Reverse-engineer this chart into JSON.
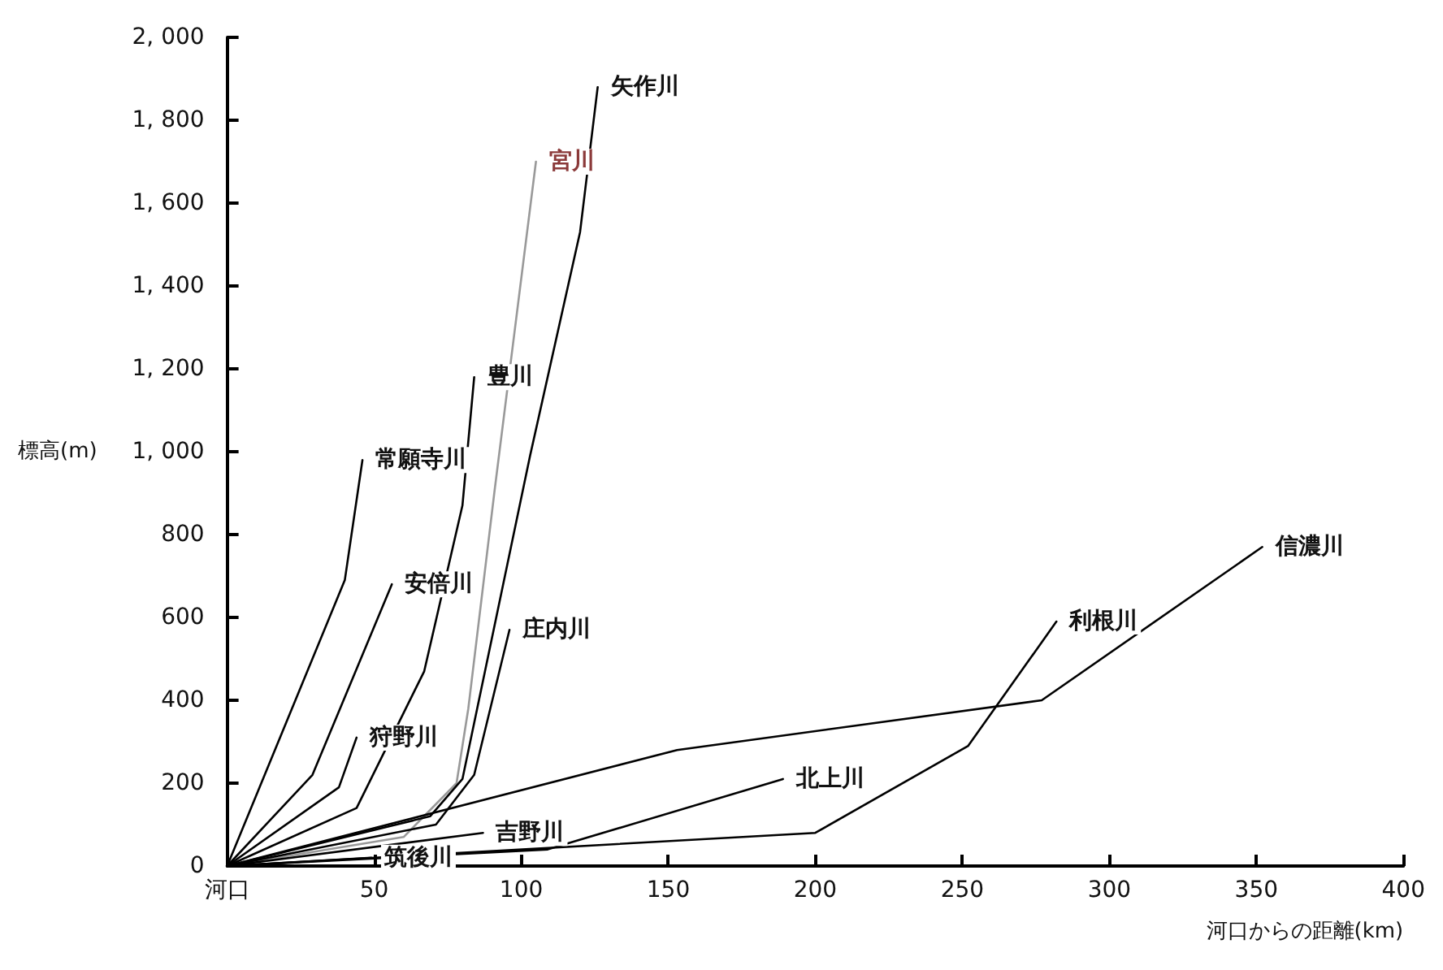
{
  "chart_data": {
    "type": "line",
    "xlabel": "河口からの距離(km)",
    "ylabel": "標高(m)",
    "xlim": [
      0,
      400
    ],
    "xticks": [
      {
        "value": 0,
        "label": "河口"
      },
      50,
      100,
      150,
      200,
      250,
      300,
      350,
      400
    ],
    "ylim": [
      0,
      2000
    ],
    "yticks": [
      0,
      200,
      400,
      600,
      800,
      {
        "value": 1000,
        "label": "1, 000"
      },
      {
        "value": 1200,
        "label": "1, 200"
      },
      {
        "value": 1400,
        "label": "1, 400"
      },
      {
        "value": 1600,
        "label": "1, 600"
      },
      {
        "value": 1800,
        "label": "1, 800"
      },
      {
        "value": 2000,
        "label": "2, 000"
      }
    ],
    "grid": false,
    "legend": false,
    "marker": "none",
    "line_style": "solid",
    "series": [
      {
        "name": "常願寺川",
        "color": "#000000",
        "x": [
          0,
          40,
          46
        ],
        "values": [
          0,
          690,
          980
        ]
      },
      {
        "name": "安倍川",
        "color": "#000000",
        "x": [
          0,
          29,
          56
        ],
        "values": [
          0,
          220,
          680
        ]
      },
      {
        "name": "狩野川",
        "color": "#000000",
        "x": [
          0,
          38,
          44
        ],
        "values": [
          0,
          190,
          310
        ]
      },
      {
        "name": "豊川",
        "color": "#000000",
        "x": [
          0,
          44,
          67,
          80,
          84
        ],
        "values": [
          0,
          140,
          470,
          870,
          1180
        ]
      },
      {
        "name": "宮川",
        "color": "#999999",
        "x": [
          0,
          60,
          78,
          82,
          91,
          105
        ],
        "values": [
          0,
          70,
          200,
          380,
          910,
          1700
        ]
      },
      {
        "name": "矢作川",
        "color": "#000000",
        "x": [
          0,
          69,
          80,
          103,
          120,
          126
        ],
        "values": [
          0,
          120,
          210,
          990,
          1530,
          1880
        ]
      },
      {
        "name": "庄内川",
        "color": "#000000",
        "x": [
          0,
          71,
          84,
          96
        ],
        "values": [
          0,
          100,
          220,
          570
        ]
      },
      {
        "name": "吉野川",
        "color": "#000000",
        "x": [
          0,
          87
        ],
        "values": [
          0,
          80
        ]
      },
      {
        "name": "筑後川",
        "color": "#000000",
        "x": [
          0,
          49
        ],
        "values": [
          0,
          20
        ]
      },
      {
        "name": "北上川",
        "color": "#000000",
        "x": [
          0,
          109,
          189
        ],
        "values": [
          0,
          40,
          210
        ]
      },
      {
        "name": "利根川",
        "color": "#000000",
        "x": [
          0,
          200,
          252,
          282
        ],
        "values": [
          0,
          80,
          290,
          590
        ]
      },
      {
        "name": "信濃川",
        "color": "#000000",
        "x": [
          0,
          153,
          277,
          352
        ],
        "values": [
          0,
          280,
          400,
          770
        ]
      }
    ]
  }
}
